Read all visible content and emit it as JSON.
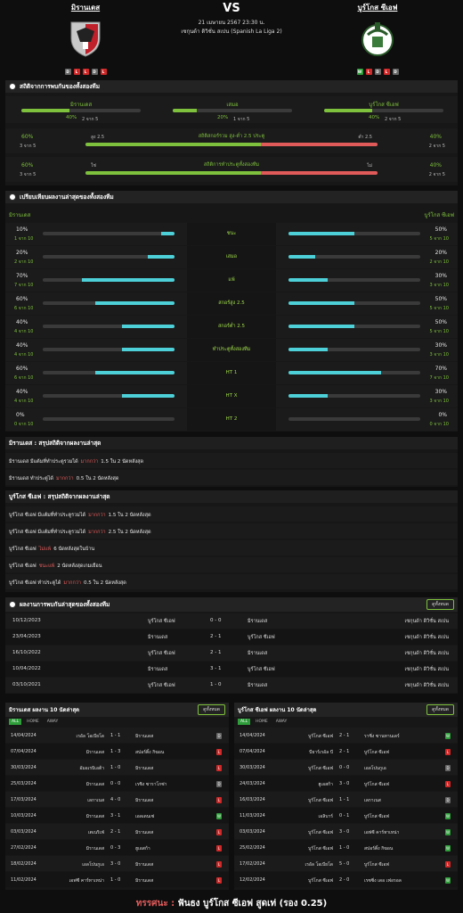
{
  "home": {
    "name": "มิรานเดส",
    "form": [
      "D",
      "L",
      "L",
      "D",
      "L"
    ]
  },
  "away": {
    "name": "บูร์โกส ซีเอฟ",
    "form": [
      "W",
      "L",
      "D",
      "L",
      "D"
    ]
  },
  "match": {
    "vs": "VS",
    "datetime": "21 เมษายน 2567 23:30 น.",
    "league": "เซกุนด้า ดิวิชั่น สเปน (Spanish La Liga 2)"
  },
  "h2h_stats": {
    "title": "สถิติจากการพบกันของทั้งสองทีม",
    "outcome": [
      {
        "label": "มิรานเดส",
        "pct": "40%",
        "count": "2 จาก 5",
        "value": 40
      },
      {
        "label": "เสมอ",
        "pct": "20%",
        "count": "1 จาก 5",
        "value": 20
      },
      {
        "label": "บูร์โกส ซีเอฟ",
        "pct": "40%",
        "count": "2 จาก 5",
        "value": 40
      }
    ],
    "goals": {
      "title": "สถิติสกอร์รวม สูง-ต่ำ 2.5 ประตู",
      "left_label": "สูง 2.5",
      "right_label": "ต่ำ 2.5",
      "left_pct": "60%",
      "left_count": "3 จาก 5",
      "right_pct": "40%",
      "right_count": "2 จาก 5",
      "left_value": 60
    },
    "btts": {
      "title": "สถิติการทำประตูทั้งสองทีม",
      "left_label": "ใช่",
      "right_label": "ไม่",
      "left_pct": "60%",
      "left_count": "3 จาก 5",
      "right_pct": "40%",
      "right_count": "2 จาก 5",
      "left_value": 60
    }
  },
  "compare": {
    "title": "เปรียบเทียบผลงานล่าสุดของทั้งสองทีม",
    "home_label": "มิรานเดส",
    "away_label": "บูร์โกส ซีเอฟ",
    "rows": [
      {
        "label": "ชนะ",
        "hp": "10%",
        "hc": "1 จาก 10",
        "hv": 10,
        "ap": "50%",
        "ac": "5 จาก 10",
        "av": 50
      },
      {
        "label": "เสมอ",
        "hp": "20%",
        "hc": "2 จาก 10",
        "hv": 20,
        "ap": "20%",
        "ac": "2 จาก 10",
        "av": 20
      },
      {
        "label": "แพ้",
        "hp": "70%",
        "hc": "7 จาก 10",
        "hv": 70,
        "ap": "30%",
        "ac": "3 จาก 10",
        "av": 30
      },
      {
        "label": "สกอร์สูง 2.5",
        "hp": "60%",
        "hc": "6 จาก 10",
        "hv": 60,
        "ap": "50%",
        "ac": "5 จาก 10",
        "av": 50
      },
      {
        "label": "สกอร์ต่ำ 2.5",
        "hp": "40%",
        "hc": "4 จาก 10",
        "hv": 40,
        "ap": "50%",
        "ac": "5 จาก 10",
        "av": 50
      },
      {
        "label": "ทำประตูทั้งสองทีม",
        "hp": "40%",
        "hc": "4 จาก 10",
        "hv": 40,
        "ap": "30%",
        "ac": "3 จาก 10",
        "av": 30
      },
      {
        "label": "HT 1",
        "hp": "60%",
        "hc": "6 จาก 10",
        "hv": 60,
        "ap": "70%",
        "ac": "7 จาก 10",
        "av": 70
      },
      {
        "label": "HT X",
        "hp": "40%",
        "hc": "4 จาก 10",
        "hv": 40,
        "ap": "30%",
        "ac": "3 จาก 10",
        "av": 30
      },
      {
        "label": "HT 2",
        "hp": "0%",
        "hc": "0 จาก 10",
        "hv": 0,
        "ap": "0%",
        "ac": "0 จาก 10",
        "av": 0
      }
    ]
  },
  "home_summary": {
    "title": "มิรานเดส : สรุปสถิติจากผลงานล่าสุด",
    "lines": [
      {
        "pre": "มิรานเดส มีแต้มที่ทำประตูรวมได้",
        "hl": "มากกว่า",
        "post": "1.5 ใน 2 นัดหลังสุด"
      },
      {
        "pre": "มิรานเดส ทำประตูได้",
        "hl": "มากกว่า",
        "post": "0.5 ใน 2 นัดหลังสุด"
      }
    ]
  },
  "away_summary": {
    "title": "บูร์โกส ซีเอฟ : สรุปสถิติจากผลงานล่าสุด",
    "lines": [
      {
        "pre": "บูร์โกส ซีเอฟ มีแต้มที่ทำประตูรวมได้",
        "hl": "มากกว่า",
        "post": "1.5 ใน 2 นัดหลังสุด"
      },
      {
        "pre": "บูร์โกส ซีเอฟ มีแต้มที่ทำประตูรวมได้",
        "hl": "มากกว่า",
        "post": "2.5 ใน 2 นัดหลังสุด"
      },
      {
        "pre": "บูร์โกส ซีเอฟ",
        "hl": "ไม่แพ้",
        "post": "6 นัดหลังสุดในบ้าน"
      },
      {
        "pre": "บูร์โกส ซีเอฟ",
        "hl": "ชนะแพ้",
        "post": "2 นัดหลังสุดเกมเยือน"
      },
      {
        "pre": "บูร์โกส ซีเอฟ ทำประตูได้",
        "hl": "มากกว่า",
        "post": "0.5 ใน 2 นัดหลังสุด"
      }
    ]
  },
  "h2h_results": {
    "title": "ผลงานการพบกันล่าสุดของทั้งสองทีม",
    "see_all": "ดูทั้งหมด",
    "rows": [
      {
        "date": "10/12/2023",
        "home": "บูร์โกส ซีเอฟ",
        "score": "0 - 0",
        "away": "มิรานเดส",
        "league": "เซกุนด้า ดิวิชั่น สเปน"
      },
      {
        "date": "23/04/2023",
        "home": "มิรานเดส",
        "score": "2 - 1",
        "away": "บูร์โกส ซีเอฟ",
        "league": "เซกุนด้า ดิวิชั่น สเปน"
      },
      {
        "date": "16/10/2022",
        "home": "บูร์โกส ซีเอฟ",
        "score": "2 - 1",
        "away": "มิรานเดส",
        "league": "เซกุนด้า ดิวิชั่น สเปน"
      },
      {
        "date": "10/04/2022",
        "home": "มิรานเดส",
        "score": "3 - 1",
        "away": "บูร์โกส ซีเอฟ",
        "league": "เซกุนด้า ดิวิชั่น สเปน"
      },
      {
        "date": "03/10/2021",
        "home": "บูร์โกส ซีเอฟ",
        "score": "1 - 0",
        "away": "มิรานเดส",
        "league": "เซกุนด้า ดิวิชั่น สเปน"
      }
    ]
  },
  "home_last10": {
    "title": "มิรานเดส ผลงาน 10 นัดล่าสุด",
    "see_all": "ดูทั้งหมด",
    "tabs": [
      "ALL",
      "HOME",
      "AWAY"
    ],
    "rows": [
      {
        "date": "14/04/2024",
        "home": "เรอัล โอเบียโด",
        "score": "1 - 1",
        "away": "มิรานเดส",
        "r": "D"
      },
      {
        "date": "07/04/2024",
        "home": "มิรานเดส",
        "score": "1 - 3",
        "away": "สปอร์ติ้ง กิฆอน",
        "r": "L"
      },
      {
        "date": "30/03/2024",
        "home": "อัมอเรบิเอต้า",
        "score": "1 - 0",
        "away": "มิรานเดส",
        "r": "L"
      },
      {
        "date": "25/03/2024",
        "home": "มิรานเดส",
        "score": "0 - 0",
        "away": "เรซิง ซาราโกซ่า",
        "r": "D"
      },
      {
        "date": "17/03/2024",
        "home": "เลกาเนส",
        "score": "4 - 0",
        "away": "มิรานเดส",
        "r": "L"
      },
      {
        "date": "10/03/2024",
        "home": "มิรานเดส",
        "score": "3 - 1",
        "away": "เอลเดนเซ่",
        "r": "W"
      },
      {
        "date": "03/03/2024",
        "home": "เตเนริเฟ่",
        "score": "2 - 1",
        "away": "มิรานเดส",
        "r": "L"
      },
      {
        "date": "27/02/2024",
        "home": "มิรานเดส",
        "score": "0 - 3",
        "away": "ฮูเอสก้า",
        "r": "L"
      },
      {
        "date": "18/02/2024",
        "home": "เอลโปนกูเอ",
        "score": "3 - 0",
        "away": "มิรานเดส",
        "r": "L"
      },
      {
        "date": "11/02/2024",
        "home": "เอฟซี คาร์ทาเหน่า",
        "score": "1 - 0",
        "away": "มิรานเดส",
        "r": "L"
      }
    ]
  },
  "away_last10": {
    "title": "บูร์โกส ซีเอฟ ผลงาน 10 นัดล่าสุด",
    "see_all": "ดูทั้งหมด",
    "tabs": [
      "ALL",
      "HOME",
      "AWAY"
    ],
    "rows": [
      {
        "date": "14/04/2024",
        "home": "บูร์โกส ซีเอฟ",
        "score": "2 - 1",
        "away": "ราซิ่ง ซานทานเดร์",
        "r": "W"
      },
      {
        "date": "07/04/2024",
        "home": "บียาร์เรอัล บี",
        "score": "2 - 1",
        "away": "บูร์โกส ซีเอฟ",
        "r": "L"
      },
      {
        "date": "30/03/2024",
        "home": "บูร์โกส ซีเอฟ",
        "score": "0 - 0",
        "away": "เอลโปนกูเอ",
        "r": "D"
      },
      {
        "date": "24/03/2024",
        "home": "ฮูเอสก้า",
        "score": "3 - 0",
        "away": "บูร์โกส ซีเอฟ",
        "r": "L"
      },
      {
        "date": "16/03/2024",
        "home": "บูร์โกส ซีเอฟ",
        "score": "1 - 1",
        "away": "เลกาเนส",
        "r": "D"
      },
      {
        "date": "11/03/2024",
        "home": "เอลิบาร์",
        "score": "0 - 1",
        "away": "บูร์โกส ซีเอฟ",
        "r": "W"
      },
      {
        "date": "03/03/2024",
        "home": "บูร์โกส ซีเอฟ",
        "score": "3 - 0",
        "away": "เอฟซี คาร์ทาเหน่า",
        "r": "W"
      },
      {
        "date": "25/02/2024",
        "home": "บูร์โกส ซีเอฟ",
        "score": "1 - 0",
        "away": "สปอร์ติ้ง กิฆอน",
        "r": "W"
      },
      {
        "date": "17/02/2024",
        "home": "เรอัล โอเบียโด",
        "score": "5 - 0",
        "away": "บูร์โกส ซีเอฟ",
        "r": "L"
      },
      {
        "date": "12/02/2024",
        "home": "บูร์โกส ซีเอฟ",
        "score": "2 - 0",
        "away": "เรซซิ่ง เดอ เฟอรอล",
        "r": "W"
      }
    ]
  },
  "footer": {
    "label": "ทรรศนะ :",
    "text": "ฟันธง บูร์โกส ซีเอฟ สูดเท่ (รอง 0.25)"
  },
  "colors": {
    "green": "#7ec13c",
    "cyan": "#4dd0d8",
    "red": "#e05a5a",
    "gray_bar": "#3a3a3a"
  }
}
